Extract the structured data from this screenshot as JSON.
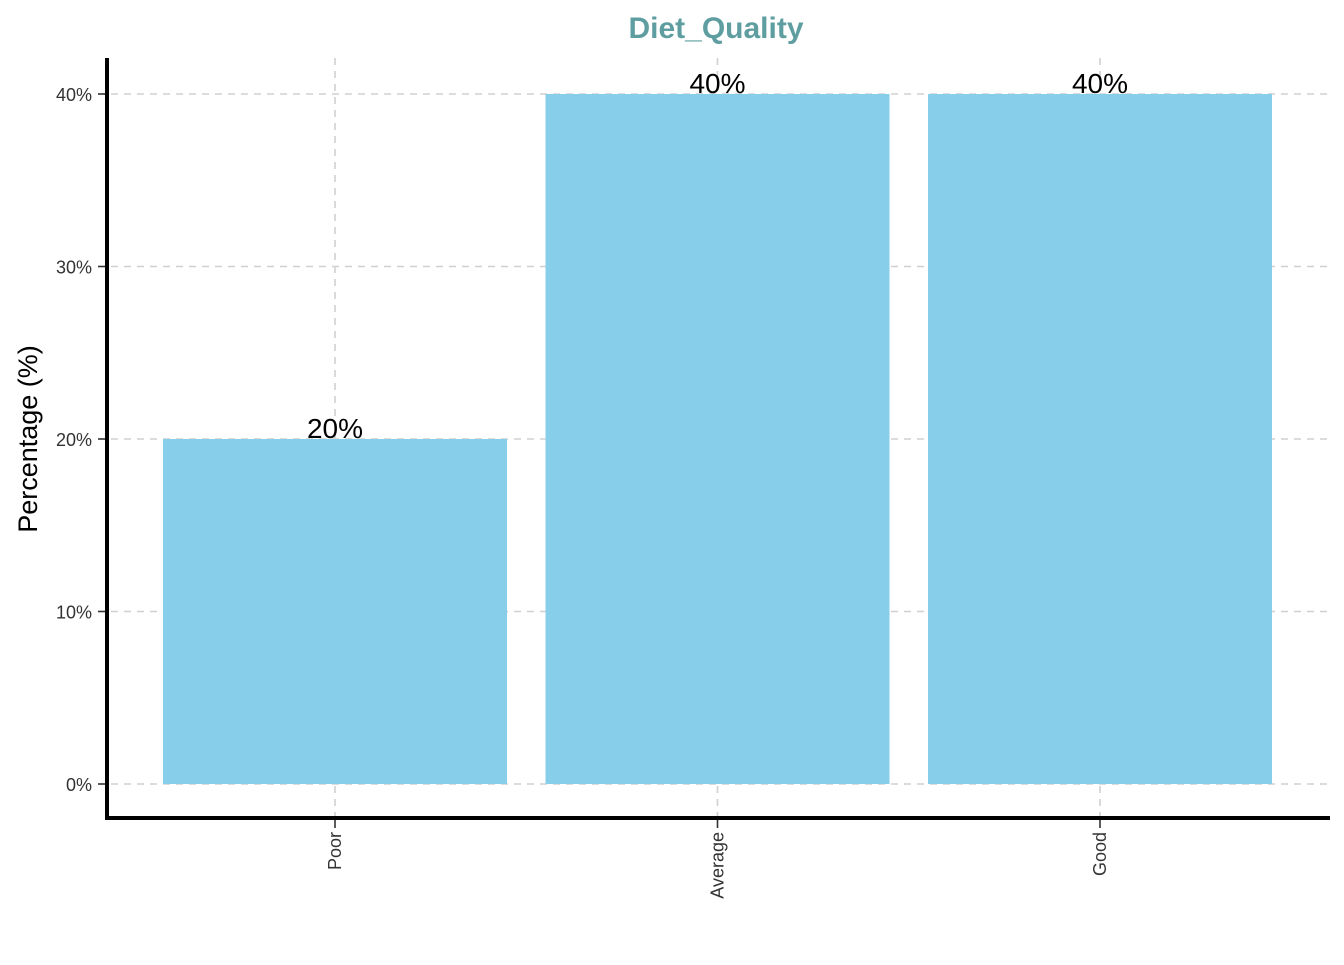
{
  "chart_data": {
    "type": "bar",
    "title": "Diet_Quality",
    "xlabel": "",
    "ylabel": "Percentage (%)",
    "categories": [
      "Poor",
      "Average",
      "Good"
    ],
    "values": [
      20,
      40,
      40
    ],
    "data_labels": [
      "20%",
      "40%",
      "40%"
    ],
    "ylim": [
      0,
      42
    ],
    "yticks": [
      0,
      10,
      20,
      30,
      40
    ],
    "ytick_labels": [
      "0%",
      "10%",
      "20%",
      "30%",
      "40%"
    ],
    "x_tick_rotation": "vertical",
    "grid": true,
    "grid_style": "dashed",
    "legend": "none",
    "colors": {
      "bar": "#87CEEB",
      "title": "#5F9EA0",
      "grid": "#D0D0D0",
      "axis": "#000000",
      "label": "#000000",
      "tick_text": "#333333"
    }
  }
}
